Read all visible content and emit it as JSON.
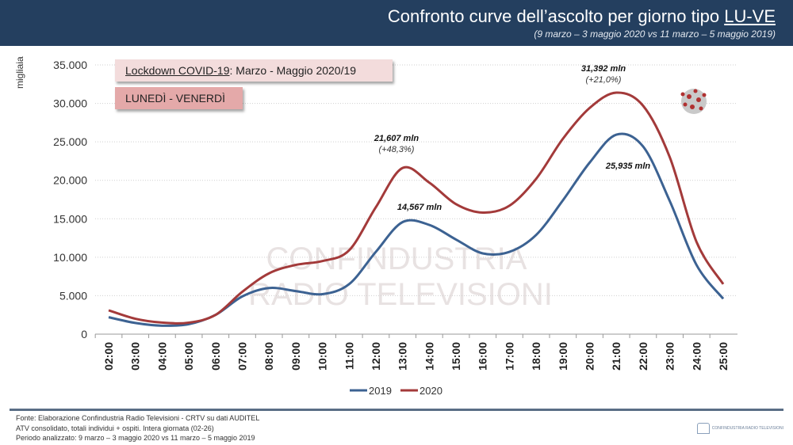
{
  "header": {
    "title_main": "Confronto curve dell’ascolto per giorno tipo ",
    "title_underlined": "LU-VE",
    "subtitle": "(9 marzo – 3 maggio 2020 vs 11 marzo – 5 maggio 2019)"
  },
  "boxes": {
    "lockdown_underlined": "Lockdown COVID-19",
    "lockdown_rest": ": Marzo - Maggio 2020/19",
    "days": "LUNEDÌ - VENERDÌ"
  },
  "watermark": [
    "CONFINDUSTRIA",
    "RADIO TELEVISIONI"
  ],
  "chart_data": {
    "type": "line",
    "title": "",
    "xlabel": "",
    "ylabel": "migliaia",
    "ylim": [
      0,
      35000
    ],
    "yticks": [
      "0",
      "5.000",
      "10.000",
      "15.000",
      "20.000",
      "25.000",
      "30.000",
      "35.000"
    ],
    "grid": "horizontal dotted",
    "legend": "bottom",
    "categories": [
      "02:00",
      "03:00",
      "04:00",
      "05:00",
      "06:00",
      "07:00",
      "08:00",
      "09:00",
      "10:00",
      "11:00",
      "12:00",
      "13:00",
      "14:00",
      "15:00",
      "16:00",
      "17:00",
      "18:00",
      "19:00",
      "20:00",
      "21:00",
      "22:00",
      "23:00",
      "24:00",
      "25:00"
    ],
    "series": [
      {
        "name": "2019",
        "color": "#3c6292",
        "values": [
          2200,
          1450,
          1100,
          1300,
          2500,
          4900,
          6000,
          5600,
          5200,
          6500,
          10700,
          14567,
          14200,
          12300,
          10500,
          10700,
          12900,
          17400,
          22300,
          25935,
          24400,
          17300,
          9000,
          4600
        ]
      },
      {
        "name": "2020",
        "color": "#a33a3a",
        "values": [
          3100,
          2000,
          1500,
          1500,
          2500,
          5500,
          7900,
          9000,
          9500,
          10900,
          16500,
          21607,
          19700,
          16900,
          15800,
          16700,
          20200,
          25400,
          29400,
          31392,
          29700,
          23000,
          12000,
          6500
        ]
      }
    ],
    "annotations": [
      {
        "label": "21,607 mln",
        "sub": "(+48,3%)"
      },
      {
        "label": "14,567 mln",
        "sub": ""
      },
      {
        "label": "31,392 mln",
        "sub": "(+21,0%)"
      },
      {
        "label": "25,935 mln",
        "sub": ""
      }
    ]
  },
  "footer": {
    "line1": "Fonte: Elaborazione Confindustria Radio Televisioni - CRTV su dati AUDITEL",
    "line2": "ATV consolidato, totali individui + ospiti. Intera giornata (02-26)",
    "line3": "Periodo analizzato: 9 marzo – 3 maggio 2020 vs 11 marzo – 5 maggio 2019",
    "logo_text": "CONFINDUSTRIA RADIO TELEVISIONI"
  }
}
